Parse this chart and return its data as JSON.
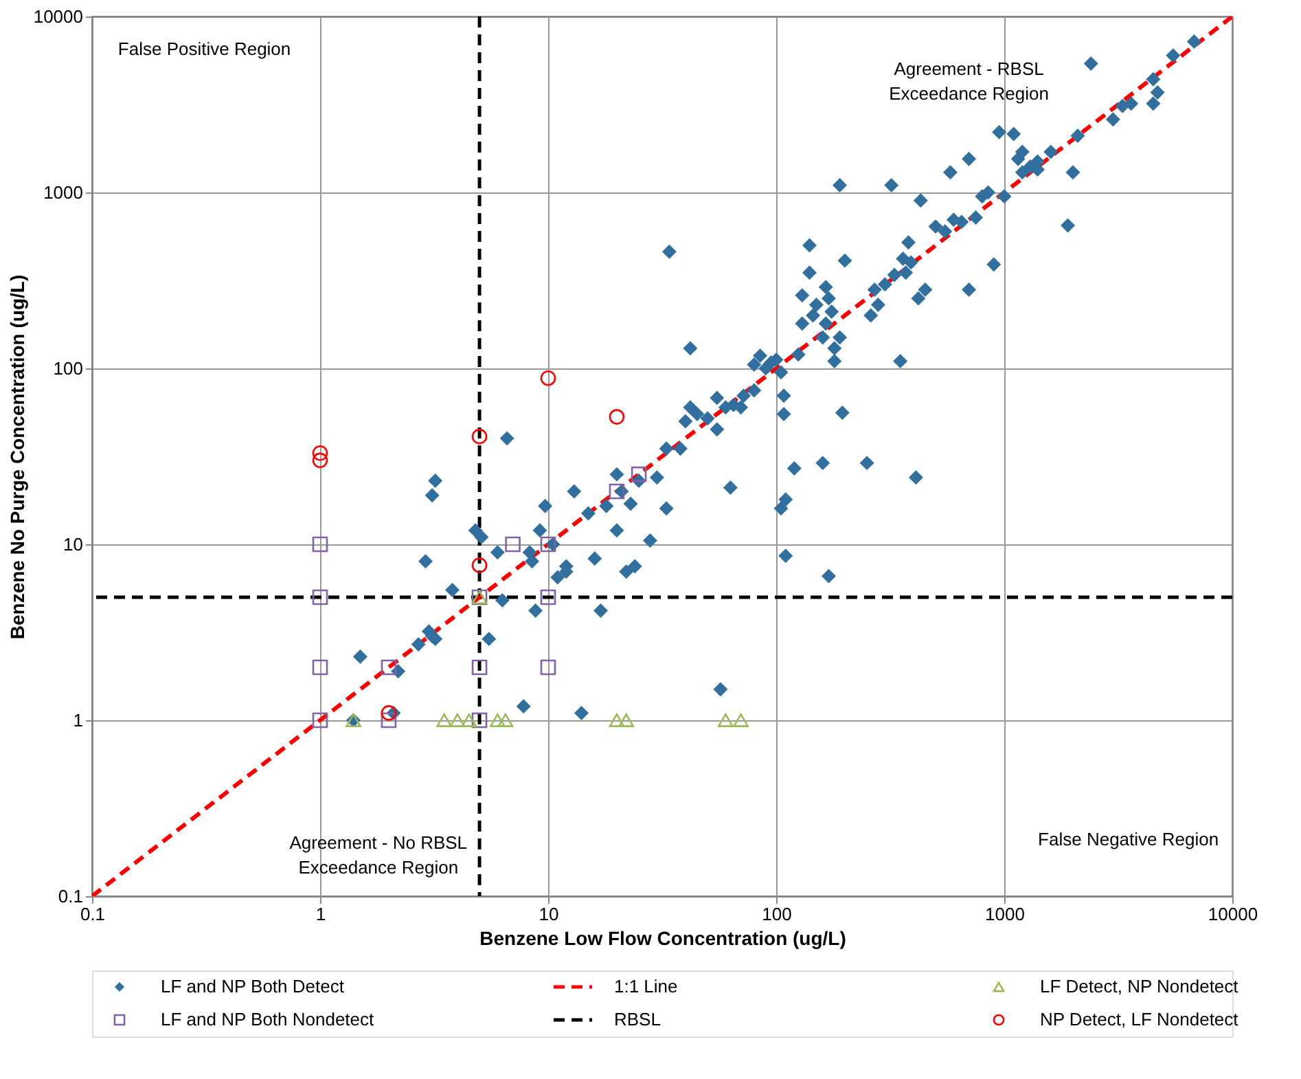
{
  "chart_data": {
    "type": "scatter",
    "xlabel": "Benzene Low Flow Concentration (ug/L)",
    "ylabel": "Benzene No Purge Concentration (ug/L)",
    "log": "xy",
    "xlim": [
      0.1,
      10000
    ],
    "ylim": [
      0.1,
      10000
    ],
    "xticks": [
      0.1,
      1,
      10,
      100,
      1000,
      10000
    ],
    "yticks": [
      0.1,
      1,
      10,
      100,
      1000,
      10000
    ],
    "grid": true,
    "legend": "bottom",
    "annotations": [
      "False Positive Region",
      "Agreement - RBSL Exceedance Region",
      "Agreement - No RBSL Exceedance Region",
      "False Negative Region"
    ],
    "ref_lines": [
      {
        "axis": "x",
        "value": 5,
        "color": "#000000",
        "line_style": "dashed"
      },
      {
        "axis": "y",
        "value": 5,
        "label": "RBSL",
        "color": "#000000",
        "line_style": "dashed"
      }
    ],
    "series": [
      {
        "name": "LF and NP Both Detect",
        "marker": "diamond",
        "color": "#31709e",
        "x": [
          1.4,
          1.5,
          2.2,
          2.1,
          2.7,
          3.0,
          3.2,
          3.1,
          2.9,
          3.1,
          3.2,
          3.8,
          4.8,
          5.1,
          5.5,
          6.0,
          6.3,
          6.6,
          7.8,
          8.3,
          8.5,
          8.8,
          9.2,
          9.7,
          10.5,
          11,
          12,
          12,
          13,
          14,
          15,
          16,
          17,
          18,
          20,
          20,
          21,
          22,
          24,
          23,
          25,
          28,
          30,
          33,
          33,
          34,
          38,
          40,
          42,
          45,
          50,
          55,
          55,
          60,
          65,
          42,
          57,
          63,
          70,
          72,
          80,
          80,
          85,
          90,
          95,
          100,
          105,
          108,
          108,
          110,
          105,
          110,
          120,
          125,
          130,
          130,
          140,
          140,
          150,
          145,
          160,
          165,
          165,
          170,
          175,
          180,
          180,
          190,
          200,
          190,
          195,
          160,
          170,
          250,
          260,
          270,
          280,
          300,
          320,
          330,
          350,
          360,
          370,
          380,
          390,
          410,
          420,
          430,
          450,
          500,
          550,
          580,
          600,
          650,
          700,
          700,
          750,
          800,
          850,
          900,
          950,
          1000,
          1100,
          1150,
          1200,
          1300,
          1400,
          1600,
          1900,
          2000,
          2100,
          2400,
          3000,
          3300,
          3600,
          4500,
          4500,
          4700,
          5500,
          6800,
          1200,
          1400
        ],
        "values": [
          1,
          2.3,
          1.9,
          1.1,
          2.7,
          3.2,
          2.9,
          3,
          8,
          19,
          23,
          5.5,
          12,
          11,
          2.9,
          9,
          4.8,
          40,
          1.2,
          9,
          8,
          4.2,
          12,
          16.5,
          10,
          6.5,
          7.5,
          7,
          20,
          1.1,
          15,
          8.3,
          4.2,
          16.5,
          12,
          25,
          20,
          7,
          7.5,
          17,
          23,
          10.5,
          24,
          16,
          35,
          460,
          35,
          50,
          60,
          55,
          52,
          45,
          68,
          60,
          62,
          130,
          1.5,
          21,
          60,
          70,
          75,
          105,
          118,
          100,
          108,
          112,
          95,
          70,
          55,
          18,
          16,
          8.6,
          27,
          120,
          180,
          260,
          350,
          500,
          230,
          200,
          150,
          290,
          180,
          250,
          210,
          130,
          110,
          150,
          410,
          1100,
          56,
          29,
          6.6,
          29,
          200,
          280,
          230,
          300,
          1100,
          340,
          110,
          420,
          350,
          520,
          400,
          24,
          250,
          900,
          280,
          640,
          600,
          1300,
          700,
          680,
          280,
          1550,
          720,
          950,
          1000,
          390,
          2200,
          950,
          2150,
          1550,
          1300,
          1400,
          1350,
          1700,
          650,
          1300,
          2100,
          5400,
          2600,
          3100,
          3200,
          3200,
          4400,
          3700,
          6000,
          7200,
          1700,
          1500
        ]
      },
      {
        "name": "LF and NP Both Nondetect",
        "marker": "square",
        "color": "#8064a2",
        "x": [
          1,
          1,
          1,
          1,
          2,
          2,
          5,
          5,
          5,
          7,
          10,
          10,
          10,
          20,
          25
        ],
        "values": [
          1,
          2,
          5,
          10,
          1,
          2,
          1,
          2,
          5,
          10,
          10,
          5,
          2,
          20,
          25
        ]
      },
      {
        "name": "1:1 Line",
        "type": "line",
        "marker": "none",
        "line_style": "dashed",
        "color": "#ff0000",
        "x": [
          0.1,
          10000
        ],
        "values": [
          0.1,
          10000
        ]
      },
      {
        "name": "LF Detect, NP Nondetect",
        "marker": "triangle",
        "color": "#9bbb59",
        "x": [
          1.4,
          3.5,
          4,
          4.5,
          6,
          6.5,
          20,
          22,
          60,
          70,
          5
        ],
        "values": [
          1,
          1,
          1,
          1,
          1,
          1,
          1,
          1,
          1,
          1,
          5
        ]
      },
      {
        "name": "NP Detect, LF Nondetect",
        "marker": "circle",
        "color": "#ff0000",
        "x": [
          1,
          1,
          5,
          5,
          10,
          20,
          2
        ],
        "values": [
          30,
          33,
          41,
          7.6,
          88,
          53,
          1.1
        ]
      }
    ]
  }
}
